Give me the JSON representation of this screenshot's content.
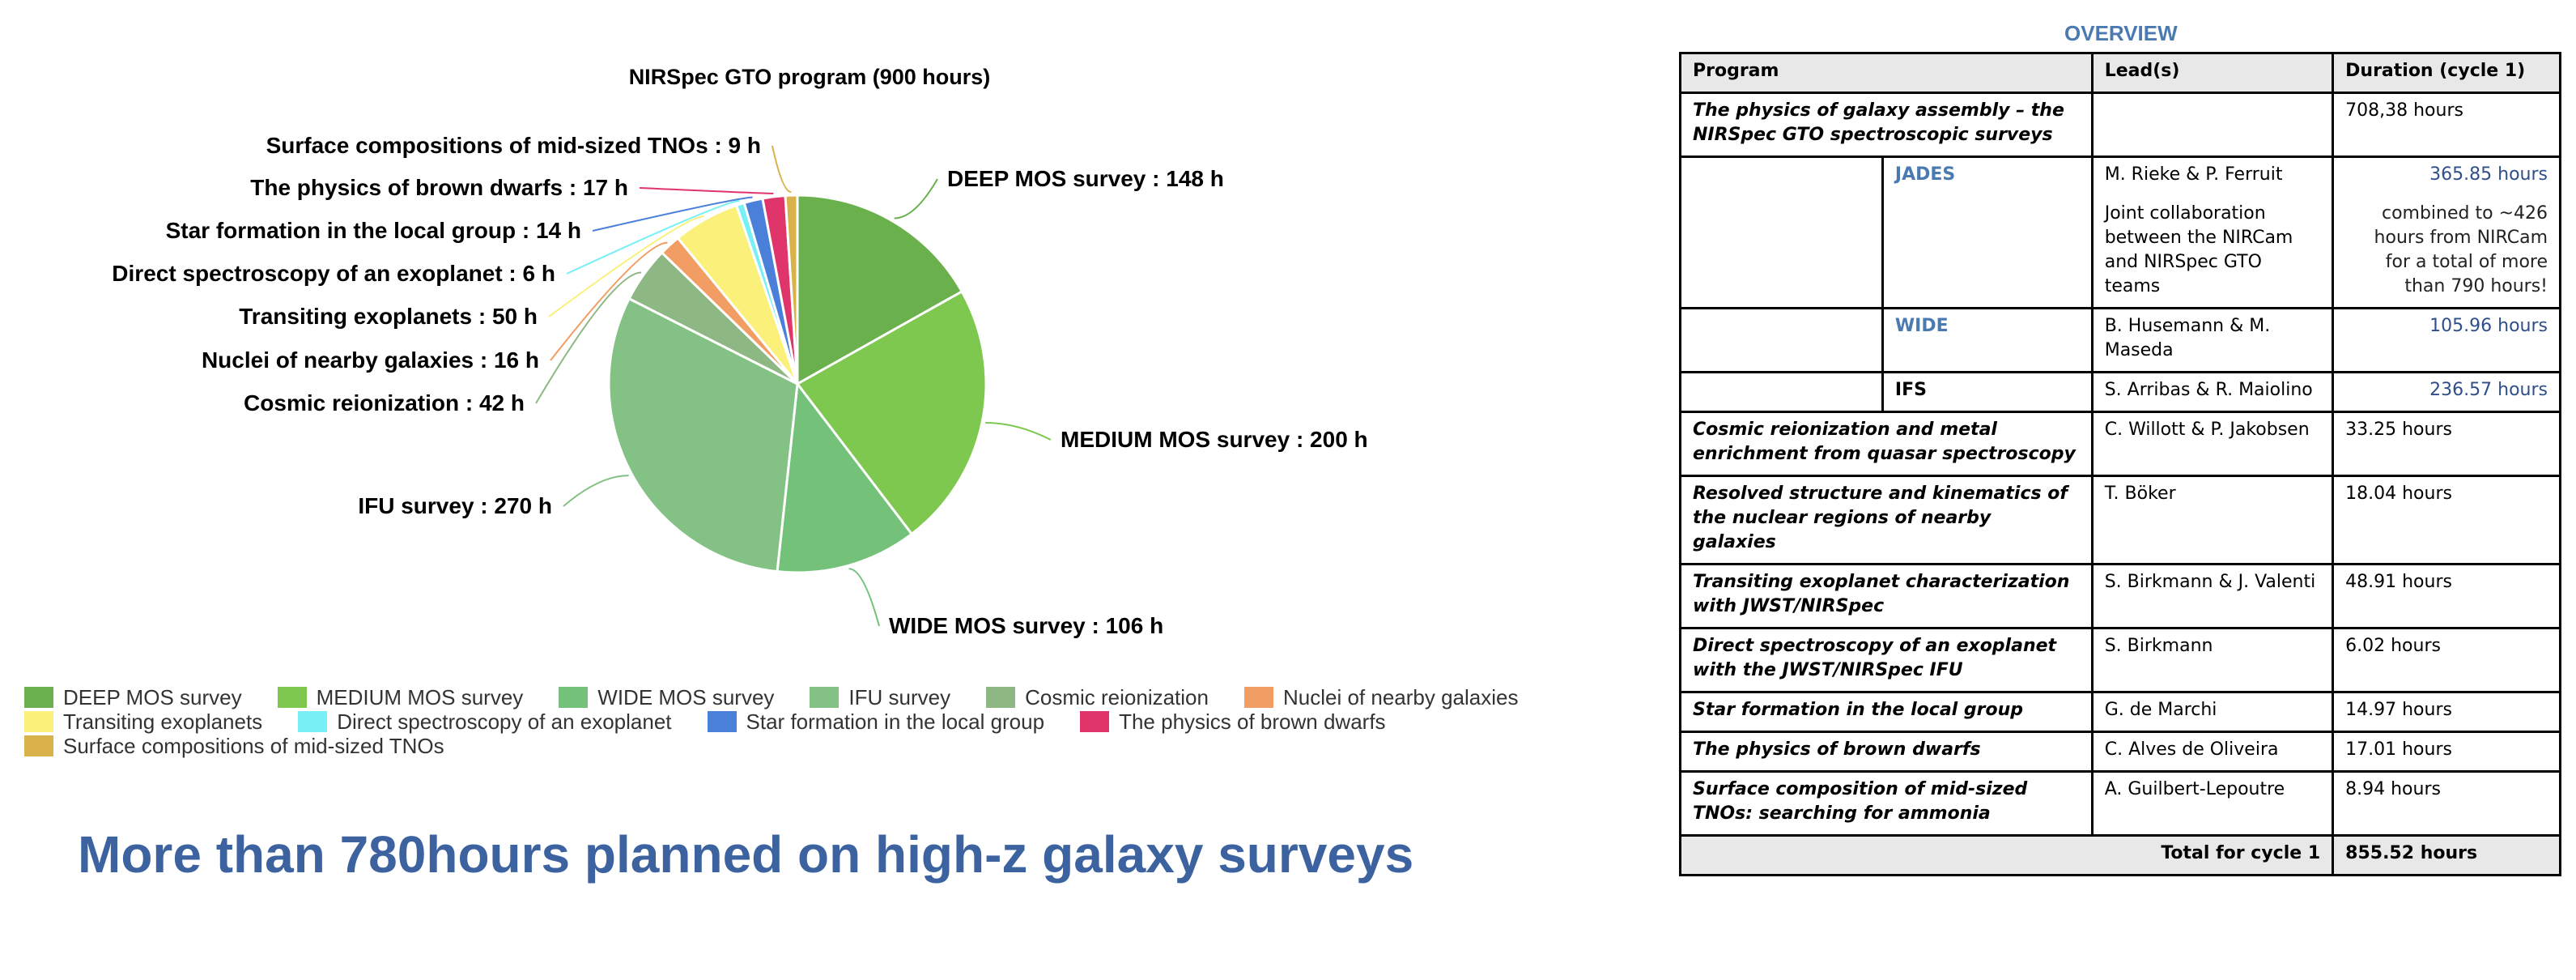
{
  "chart_data": {
    "type": "pie",
    "title": "NIRSpec GTO program (900 hours)",
    "unit": "h",
    "slices": [
      {
        "label": "DEEP MOS survey",
        "value": 148,
        "color": "#6ab04c"
      },
      {
        "label": "MEDIUM MOS survey",
        "value": 200,
        "color": "#7ec850"
      },
      {
        "label": "WIDE MOS survey",
        "value": 106,
        "color": "#74c27a"
      },
      {
        "label": "IFU survey",
        "value": 270,
        "color": "#84c184"
      },
      {
        "label": "Cosmic reionization",
        "value": 42,
        "color": "#8db883"
      },
      {
        "label": "Nuclei of nearby galaxies",
        "value": 16,
        "color": "#f29d63"
      },
      {
        "label": "Transiting exoplanets",
        "value": 50,
        "color": "#fbf07a"
      },
      {
        "label": "Direct spectroscopy of an exoplanet",
        "value": 6,
        "color": "#77eff5"
      },
      {
        "label": "Star formation in the local group",
        "value": 14,
        "color": "#4a80d9"
      },
      {
        "label": "The physics of brown dwarfs",
        "value": 17,
        "color": "#e0356b"
      },
      {
        "label": "Surface compositions of mid-sized TNOs",
        "value": 9,
        "color": "#dab24c"
      }
    ],
    "legend_position": "bottom"
  },
  "headline": "More than 780hours planned on high-z galaxy surveys",
  "overview": {
    "title": "OVERVIEW",
    "headers": [
      "Program",
      "Lead(s)",
      "Duration (cycle 1)"
    ],
    "rows": [
      {
        "program": "The physics of galaxy assembly – the NIRSpec GTO spectroscopic surveys",
        "lead": "",
        "duration": "708,38 hours"
      },
      {
        "sub": "JADES",
        "lead": "M. Rieke & P. Ferruit",
        "lead_note": "Joint collaboration between the NIRCam and NIRSpec GTO teams",
        "duration": "365.85 hours",
        "duration_note": "combined to ~426 hours from NIRCam for a total of more than 790 hours!"
      },
      {
        "sub": "WIDE",
        "lead": "B. Husemann & M. Maseda",
        "duration": "105.96 hours"
      },
      {
        "sub": "IFS",
        "lead": "S. Arribas & R. Maiolino",
        "duration": "236.57 hours"
      },
      {
        "program": "Cosmic reionization and metal enrichment from quasar spectroscopy",
        "lead": "C. Willott & P. Jakobsen",
        "duration": "33.25 hours"
      },
      {
        "program": "Resolved structure and kinematics of the nuclear regions of nearby galaxies",
        "lead": "T. Böker",
        "duration": "18.04 hours"
      },
      {
        "program": "Transiting exoplanet characterization with JWST/NIRSpec",
        "lead": "S. Birkmann & J. Valenti",
        "duration": "48.91 hours"
      },
      {
        "program": "Direct spectroscopy of an exoplanet with the JWST/NIRSpec IFU",
        "lead": "S. Birkmann",
        "duration": "6.02 hours"
      },
      {
        "program": "Star formation in the local group",
        "lead": "G. de Marchi",
        "duration": "14.97 hours"
      },
      {
        "program": "The physics of brown dwarfs",
        "lead": "C. Alves de Oliveira",
        "duration": "17.01 hours"
      },
      {
        "program": "Surface composition of mid-sized TNOs: searching for ammonia",
        "lead": "A. Guilbert-Lepoutre",
        "duration": "8.94 hours"
      }
    ],
    "total_label": "Total for cycle 1",
    "total_value": "855.52 hours"
  }
}
